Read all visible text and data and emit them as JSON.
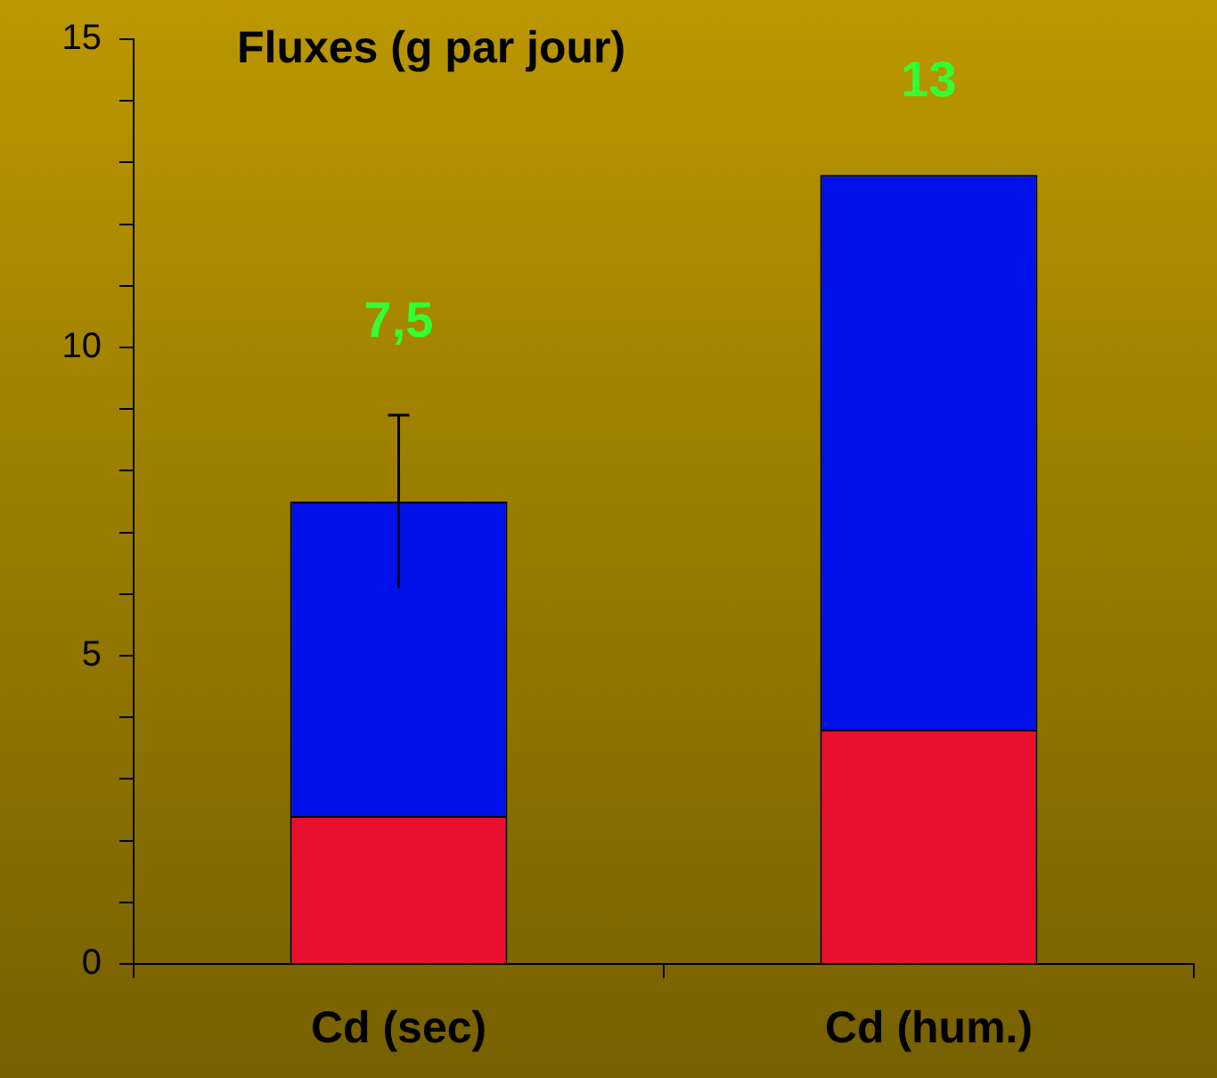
{
  "chart_data": {
    "type": "bar",
    "title": "Fluxes (g par jour)",
    "categories": [
      "Cd (sec)",
      "Cd (hum.)"
    ],
    "stacked": true,
    "series": [
      {
        "color": "#e8102e",
        "values": [
          2.4,
          3.8
        ]
      },
      {
        "color": "#0010e8",
        "values": [
          5.1,
          9.0
        ],
        "errors": [
          1.4,
          null
        ]
      }
    ],
    "totals": [
      "7,5",
      "13"
    ],
    "ylim": [
      0,
      15
    ],
    "yticks": [
      0,
      {
        "value": 1,
        "label": null
      },
      {
        "value": 2,
        "label": null
      },
      {
        "value": 3,
        "label": null
      },
      {
        "value": 4,
        "label": null
      },
      5,
      {
        "value": 6,
        "label": null
      },
      {
        "value": 7,
        "label": null
      },
      {
        "value": 8,
        "label": null
      },
      {
        "value": 9,
        "label": null
      },
      10,
      {
        "value": 11,
        "label": null
      },
      {
        "value": 12,
        "label": null
      },
      {
        "value": 13,
        "label": null
      },
      {
        "value": 14,
        "label": null
      },
      15
    ],
    "grid": false,
    "legend": false
  }
}
